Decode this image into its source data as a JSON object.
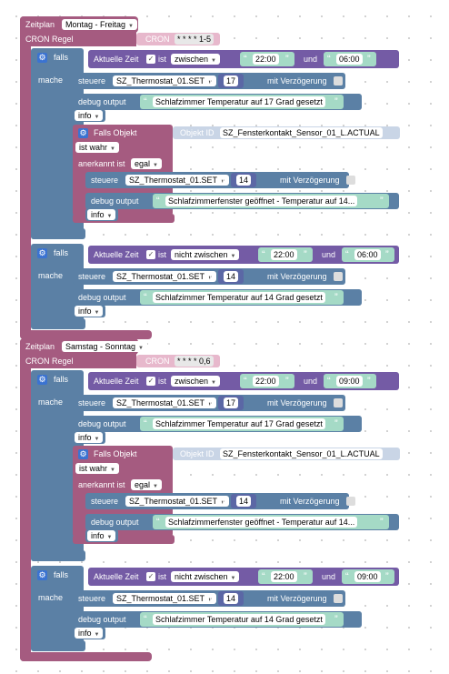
{
  "colors": {
    "schedule": "#a55b80",
    "logic": "#5b80a5",
    "condition": "#745ba5",
    "text": "#a5dac6",
    "number": "#5b67a5"
  },
  "icons": {
    "gear": "gear-icon",
    "quote": "quote-icon"
  },
  "s1": {
    "zeitplan": "Zeitplan",
    "sched_dd": "Montag - Freitag",
    "cron_label": "CRON Regel",
    "cron_tag": "CRON",
    "cron_val": "* * * * 1-5",
    "if1": {
      "falls": "falls",
      "mache": "mache",
      "time_label": "Aktuelle Zeit",
      "ist": "ist",
      "op": "zwischen",
      "t1": "22:00",
      "und": "und",
      "t2": "06:00",
      "set_label": "steuere",
      "set_dd": "SZ_Thermostat_01.SET",
      "mit": "mit",
      "num": "17",
      "delay": "mit Verzögerung",
      "dbg_label": "debug output",
      "dbg_txt": "Schlafzimmer Temperatur auf 17 Grad gesetzt",
      "level": "info",
      "obj": {
        "label": "Falls Objekt",
        "tag": "Objekt ID",
        "id": "SZ_Fensterkontakt_Sensor_01_L.ACTUAL",
        "cond": "ist wahr",
        "ack_label": "anerkannt ist",
        "ack": "egal",
        "set_label": "steuere",
        "set_dd": "SZ_Thermostat_01.SET",
        "mit": "mit",
        "num": "14",
        "delay": "mit Verzögerung",
        "dbg_label": "debug output",
        "dbg_txt": "Schlafzimmerfenster geöffnet - Temperatur auf 14...",
        "level": "info"
      }
    },
    "if2": {
      "falls": "falls",
      "mache": "mache",
      "time_label": "Aktuelle Zeit",
      "ist": "ist",
      "op": "nicht zwischen",
      "t1": "22:00",
      "und": "und",
      "t2": "06:00",
      "set_label": "steuere",
      "set_dd": "SZ_Thermostat_01.SET",
      "mit": "mit",
      "num": "14",
      "delay": "mit Verzögerung",
      "dbg_label": "debug output",
      "dbg_txt": "Schlafzimmer Temperatur auf 14 Grad gesetzt",
      "level": "info"
    }
  },
  "s2": {
    "zeitplan": "Zeitplan",
    "sched_dd": "Samstag - Sonntag",
    "cron_label": "CRON Regel",
    "cron_tag": "CRON",
    "cron_val": "* * * * 0,6",
    "if1": {
      "falls": "falls",
      "mache": "mache",
      "time_label": "Aktuelle Zeit",
      "ist": "ist",
      "op": "zwischen",
      "t1": "22:00",
      "und": "und",
      "t2": "09:00",
      "set_label": "steuere",
      "set_dd": "SZ_Thermostat_01.SET",
      "mit": "mit",
      "num": "17",
      "delay": "mit Verzögerung",
      "dbg_label": "debug output",
      "dbg_txt": "Schlafzimmer Temperatur auf 17 Grad gesetzt",
      "level": "info",
      "obj": {
        "label": "Falls Objekt",
        "tag": "Objekt ID",
        "id": "SZ_Fensterkontakt_Sensor_01_L.ACTUAL",
        "cond": "ist wahr",
        "ack_label": "anerkannt ist",
        "ack": "egal",
        "set_label": "steuere",
        "set_dd": "SZ_Thermostat_01.SET",
        "mit": "mit",
        "num": "14",
        "delay": "mit Verzögerung",
        "dbg_label": "debug output",
        "dbg_txt": "Schlafzimmerfenster geöffnet - Temperatur auf 14...",
        "level": "info"
      }
    },
    "if2": {
      "falls": "falls",
      "mache": "mache",
      "time_label": "Aktuelle Zeit",
      "ist": "ist",
      "op": "nicht zwischen",
      "t1": "22:00",
      "und": "und",
      "t2": "09:00",
      "set_label": "steuere",
      "set_dd": "SZ_Thermostat_01.SET",
      "mit": "mit",
      "num": "14",
      "delay": "mit Verzögerung",
      "dbg_label": "debug output",
      "dbg_txt": "Schlafzimmer Temperatur auf 14 Grad gesetzt",
      "level": "info"
    }
  }
}
